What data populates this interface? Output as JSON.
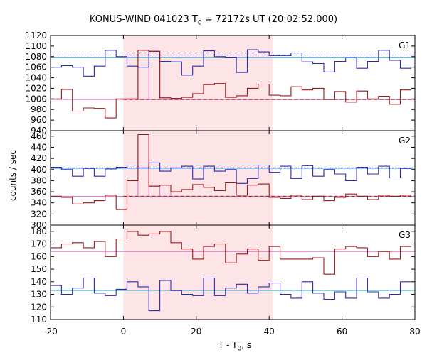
{
  "header": {
    "title_pre": "KONUS-WIND 041023 T",
    "title_sub": "0",
    "title_post": " = 72172s UT (20:02:52.000)"
  },
  "axes": {
    "ylabel": "counts / sec",
    "xlabel_pre": "T - T",
    "xlabel_sub": "0",
    "xlabel_post": ", s"
  },
  "chart_data": {
    "type": "step",
    "xlim": [
      -20,
      80
    ],
    "xticks": [
      -20,
      0,
      20,
      40,
      60,
      80
    ],
    "highlight_interval": [
      0,
      41
    ],
    "colors": {
      "red_series": "#9b1b1b",
      "blue_series": "#2b2bb0",
      "pink_mean": "#e070c8",
      "cyan_mean": "#50c8e8",
      "highlight": "#fde4e6"
    },
    "panels": [
      {
        "label": "G1",
        "ylim": [
          940,
          1120
        ],
        "yticks": [
          940,
          960,
          980,
          1000,
          1020,
          1040,
          1060,
          1080,
          1100,
          1120
        ],
        "blue_mean": 1079,
        "blue_dashed": 1083,
        "red_mean": 999,
        "red_dashed": 999,
        "x_edges": [
          -20,
          -17,
          -14,
          -11,
          -8,
          -5,
          -2,
          1,
          4,
          7,
          10,
          13,
          16,
          19,
          22,
          25,
          28,
          31,
          34,
          37,
          40,
          43,
          46,
          49,
          52,
          55,
          58,
          61,
          64,
          67,
          70,
          73,
          76,
          79
        ],
        "blue": [
          1060,
          1063,
          1060,
          1043,
          1062,
          1092,
          1080,
          1062,
          1060,
          1090,
          1071,
          1070,
          1045,
          1062,
          1091,
          1080,
          1079,
          1050,
          1093,
          1089,
          1082,
          1082,
          1087,
          1070,
          1067,
          1051,
          1071,
          1078,
          1058,
          1071,
          1092,
          1073,
          1058
        ],
        "red": [
          1000,
          1018,
          977,
          983,
          982,
          964,
          1000,
          1000,
          1092,
          1090,
          1002,
          1001,
          1003,
          1010,
          1027,
          1029,
          1003,
          1006,
          1020,
          1028,
          1007,
          1006,
          1023,
          1017,
          1020,
          999,
          1014,
          994,
          1015,
          1000,
          1005,
          990,
          1017
        ]
      },
      {
        "label": "G2",
        "ylim": [
          300,
          470
        ],
        "yticks": [
          300,
          320,
          340,
          360,
          380,
          400,
          420,
          440,
          460
        ],
        "blue_mean": 402,
        "blue_dashed": 403,
        "red_mean": 352,
        "red_dashed": 352,
        "x_edges": [
          -20,
          -17,
          -14,
          -11,
          -8,
          -5,
          -2,
          1,
          4,
          7,
          10,
          13,
          16,
          19,
          22,
          25,
          28,
          31,
          34,
          37,
          40,
          43,
          46,
          49,
          52,
          55,
          58,
          61,
          64,
          67,
          70,
          73,
          76,
          79
        ],
        "blue": [
          404,
          400,
          388,
          402,
          388,
          401,
          404,
          408,
          403,
          412,
          397,
          403,
          406,
          383,
          406,
          397,
          400,
          375,
          384,
          408,
          395,
          406,
          384,
          407,
          388,
          400,
          392,
          380,
          404,
          392,
          406,
          385,
          402
        ],
        "red": [
          352,
          350,
          338,
          340,
          344,
          354,
          328,
          380,
          463,
          370,
          372,
          360,
          364,
          373,
          368,
          362,
          376,
          354,
          372,
          374,
          350,
          348,
          354,
          346,
          352,
          344,
          350,
          356,
          352,
          346,
          354,
          352,
          354
        ]
      },
      {
        "label": "G3",
        "ylim": [
          110,
          185
        ],
        "yticks": [
          110,
          120,
          130,
          140,
          150,
          160,
          170,
          180
        ],
        "blue_mean": 133,
        "red_mean": 164,
        "x_edges": [
          -20,
          -17,
          -14,
          -11,
          -8,
          -5,
          -2,
          1,
          4,
          7,
          10,
          13,
          16,
          19,
          22,
          25,
          28,
          31,
          34,
          37,
          40,
          43,
          46,
          49,
          52,
          55,
          58,
          61,
          64,
          67,
          70,
          73,
          76,
          79
        ],
        "blue": [
          137,
          130,
          135,
          143,
          131,
          129,
          134,
          140,
          136,
          117,
          141,
          133,
          130,
          129,
          143,
          129,
          135,
          138,
          131,
          136,
          139,
          130,
          127,
          140,
          131,
          126,
          132,
          127,
          143,
          132,
          127,
          130,
          140
        ],
        "red": [
          167,
          170,
          171,
          167,
          172,
          160,
          174,
          180,
          177,
          178,
          180,
          171,
          166,
          158,
          168,
          170,
          155,
          162,
          166,
          157,
          168,
          158,
          158,
          158,
          159,
          146,
          166,
          168,
          167,
          160,
          164,
          158,
          168
        ]
      }
    ]
  }
}
